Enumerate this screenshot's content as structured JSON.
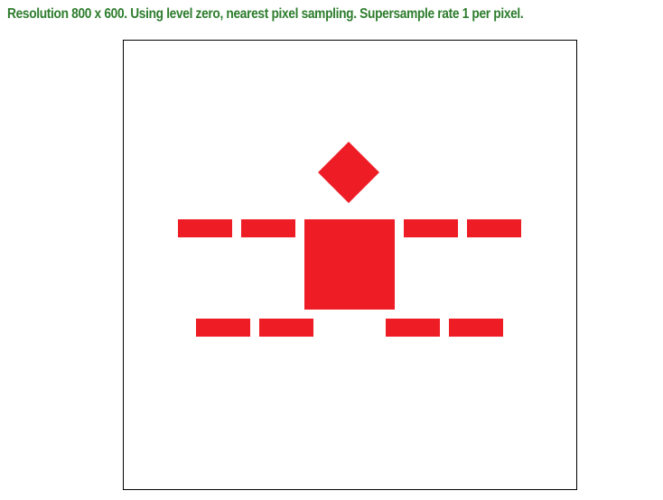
{
  "status": {
    "text": "Resolution 800 x 600. Using level zero, nearest pixel sampling. Supersample rate 1 per pixel.",
    "color": "#2e7d2e"
  },
  "canvas": {
    "background": "#ffffff",
    "border_color": "#000000",
    "shape_color": "#ee1c25"
  }
}
